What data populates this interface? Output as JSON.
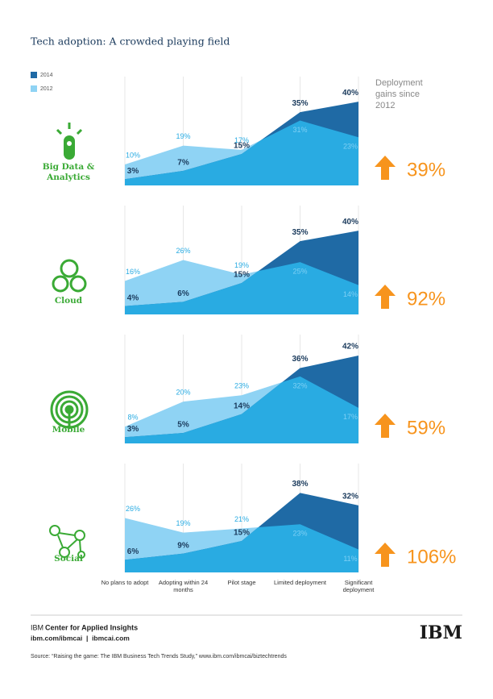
{
  "title": "Tech adoption: A crowded playing field",
  "gains_heading": "Deployment gains since 2012",
  "categories": [
    "No plans to adopt",
    "Adopting within 24 months",
    "Pilot stage",
    "Limited deployment",
    "Significant deployment"
  ],
  "chart_data": [
    {
      "type": "area",
      "label": "Big Data & Analytics",
      "ylim": [
        0,
        52
      ],
      "series": [
        {
          "name": "2014",
          "color": "#1f6aa5",
          "values": [
            3,
            7,
            15,
            35,
            40
          ],
          "value_labels": [
            "3%",
            "7%",
            "15%",
            "35%",
            "40%"
          ]
        },
        {
          "name": "2012",
          "color": "#8fd3f4",
          "values": [
            10,
            19,
            17,
            31,
            23
          ],
          "value_labels": [
            "10%",
            "19%",
            "17%",
            "31%",
            "23%"
          ]
        }
      ],
      "gain": {
        "value": 39,
        "label": "39%"
      }
    },
    {
      "type": "area",
      "label": "Cloud",
      "ylim": [
        0,
        52
      ],
      "series": [
        {
          "name": "2014",
          "color": "#1f6aa5",
          "values": [
            4,
            6,
            15,
            35,
            40
          ],
          "value_labels": [
            "4%",
            "6%",
            "15%",
            "35%",
            "40%"
          ]
        },
        {
          "name": "2012",
          "color": "#8fd3f4",
          "values": [
            16,
            26,
            19,
            25,
            14
          ],
          "value_labels": [
            "16%",
            "26%",
            "19%",
            "25%",
            "14%"
          ]
        }
      ],
      "gain": {
        "value": 92,
        "label": "92%"
      }
    },
    {
      "type": "area",
      "label": "Mobile",
      "ylim": [
        0,
        52
      ],
      "series": [
        {
          "name": "2014",
          "color": "#1f6aa5",
          "values": [
            3,
            5,
            14,
            36,
            42
          ],
          "value_labels": [
            "3%",
            "5%",
            "14%",
            "36%",
            "42%"
          ]
        },
        {
          "name": "2012",
          "color": "#8fd3f4",
          "values": [
            8,
            20,
            23,
            32,
            17
          ],
          "value_labels": [
            "8%",
            "20%",
            "23%",
            "32%",
            "17%"
          ]
        }
      ],
      "gain": {
        "value": 59,
        "label": "59%"
      }
    },
    {
      "type": "area",
      "label": "Social",
      "ylim": [
        0,
        52
      ],
      "series": [
        {
          "name": "2014",
          "color": "#1f6aa5",
          "values": [
            6,
            9,
            15,
            38,
            32
          ],
          "value_labels": [
            "6%",
            "9%",
            "15%",
            "38%",
            "32%"
          ]
        },
        {
          "name": "2012",
          "color": "#8fd3f4",
          "values": [
            26,
            19,
            21,
            23,
            11
          ],
          "value_labels": [
            "26%",
            "19%",
            "21%",
            "23%",
            "11%"
          ]
        }
      ],
      "gain": {
        "value": 106,
        "label": "106%"
      }
    }
  ],
  "footer": {
    "brand": "IBM",
    "center": "Center for Applied Insights",
    "links": "ibm.com/ibmcai  |  ibmcai.com",
    "source": "Source: “Raising the game: The IBM Business Tech Trends Study,” www.ibm.com/ibmcai/biztechtrends",
    "logo": "IBM"
  }
}
